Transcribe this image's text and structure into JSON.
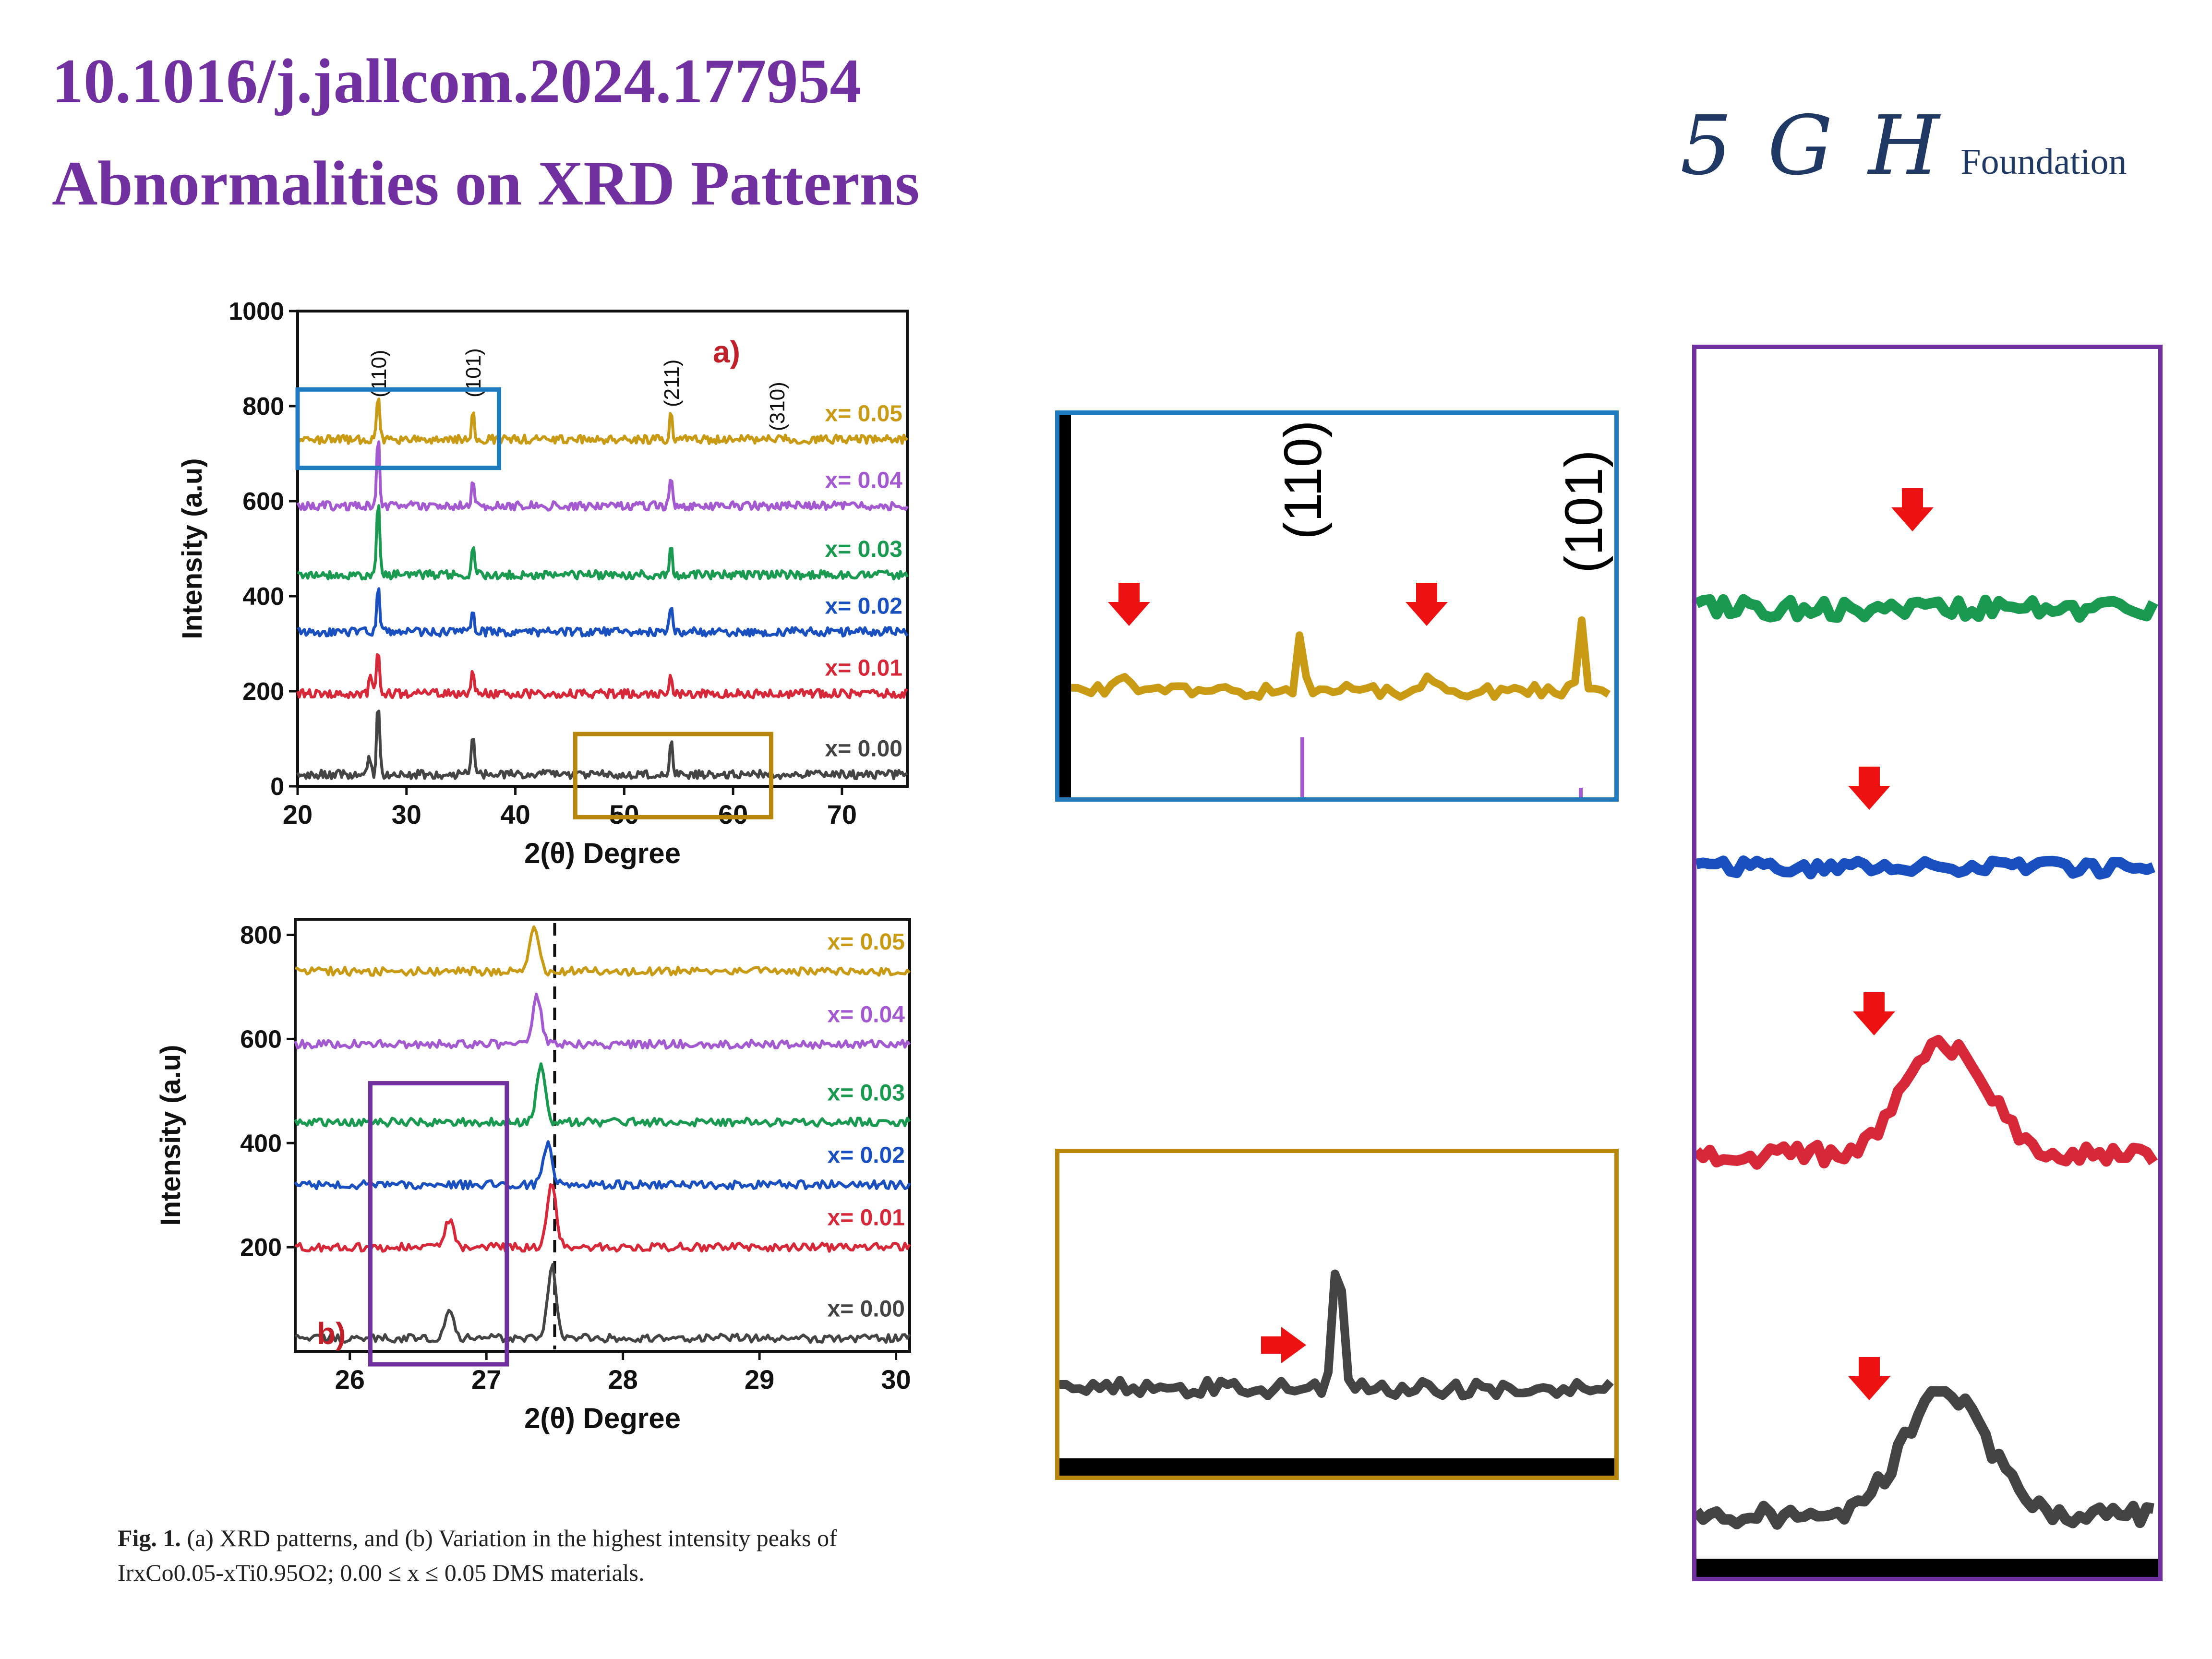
{
  "header": {
    "doi": "10.1016/j.jallcom.2024.177954",
    "subtitle": "Abnormalities on XRD Patterns"
  },
  "logo": {
    "mark": "5 G H",
    "word": "Foundation"
  },
  "caption": {
    "fig_label": "Fig. 1.",
    "line1": "(a) XRD patterns, and (b) Variation in the highest intensity peaks of",
    "line2": "IrxCo0.05-xTi0.95O2; 0.00 ≤ x ≤ 0.05 DMS materials."
  },
  "colors": {
    "x000": "#444444",
    "x001": "#d62839",
    "x002": "#1a4fbf",
    "x003": "#1a9a50",
    "x004": "#a35ad1",
    "x005": "#c99a14",
    "blue_box": "#1f7bbf",
    "gold_box": "#b8860b",
    "purple_box": "#7030a0",
    "arrow": "#ee1111",
    "title": "#7030a0"
  },
  "chart_data": [
    {
      "type": "line",
      "panel_label": "a)",
      "xlabel": "2(θ) Degree",
      "ylabel": "Intensity (a.u)",
      "xlim": [
        20,
        76
      ],
      "ylim": [
        0,
        1000
      ],
      "xticks": [
        20,
        30,
        40,
        50,
        60,
        70
      ],
      "yticks": [
        0,
        200,
        400,
        600,
        800,
        1000
      ],
      "peak_labels": [
        {
          "text": "(110)",
          "x": 27.4
        },
        {
          "text": "(101)",
          "x": 36.1
        },
        {
          "text": "(211)",
          "x": 54.3
        },
        {
          "text": "(310)",
          "x": 64.0
        }
      ],
      "series": [
        {
          "name": "x= 0.00",
          "color": "#444444",
          "baseline": 25,
          "peaks": [
            {
              "x": 26.6,
              "h": 40
            },
            {
              "x": 27.4,
              "h": 160
            },
            {
              "x": 36.1,
              "h": 95
            },
            {
              "x": 54.3,
              "h": 75
            }
          ]
        },
        {
          "name": "x= 0.01",
          "color": "#d62839",
          "baseline": 195,
          "peaks": [
            {
              "x": 26.7,
              "h": 45
            },
            {
              "x": 27.4,
              "h": 100
            },
            {
              "x": 36.1,
              "h": 50
            },
            {
              "x": 54.3,
              "h": 40
            }
          ]
        },
        {
          "name": "x= 0.02",
          "color": "#1a4fbf",
          "baseline": 325,
          "peaks": [
            {
              "x": 27.4,
              "h": 95
            },
            {
              "x": 36.1,
              "h": 50
            },
            {
              "x": 54.3,
              "h": 60
            }
          ]
        },
        {
          "name": "x= 0.03",
          "color": "#1a9a50",
          "baseline": 445,
          "peaks": [
            {
              "x": 27.4,
              "h": 160
            },
            {
              "x": 36.1,
              "h": 70
            },
            {
              "x": 54.3,
              "h": 60
            }
          ]
        },
        {
          "name": "x= 0.04",
          "color": "#a35ad1",
          "baseline": 590,
          "peaks": [
            {
              "x": 27.4,
              "h": 150
            },
            {
              "x": 36.1,
              "h": 55
            },
            {
              "x": 54.3,
              "h": 70
            }
          ]
        },
        {
          "name": "x= 0.05",
          "color": "#c99a14",
          "baseline": 730,
          "peaks": [
            {
              "x": 27.4,
              "h": 95
            },
            {
              "x": 36.1,
              "h": 65
            },
            {
              "x": 54.3,
              "h": 60
            }
          ]
        }
      ],
      "highlight_boxes": [
        {
          "color": "#1f7bbf",
          "x": [
            20,
            38.5
          ],
          "y": [
            670,
            835
          ]
        },
        {
          "color": "#b8860b",
          "x": [
            45.5,
            63.5
          ],
          "y": [
            -65,
            110
          ]
        }
      ]
    },
    {
      "type": "line",
      "panel_label": "b)",
      "xlabel": "2(θ) Degree",
      "ylabel": "Intensity (a.u)",
      "xlim": [
        25.6,
        30.1
      ],
      "ylim": [
        0,
        830
      ],
      "xticks": [
        26,
        27,
        28,
        29,
        30
      ],
      "yticks": [
        200,
        400,
        600,
        800
      ],
      "reference_line_x": 27.5,
      "series": [
        {
          "name": "x= 0.00",
          "color": "#444444",
          "baseline": 25,
          "peaks": [
            {
              "x": 26.73,
              "h": 60
            },
            {
              "x": 27.48,
              "h": 140
            }
          ]
        },
        {
          "name": "x= 0.01",
          "color": "#d62839",
          "baseline": 200,
          "peaks": [
            {
              "x": 26.73,
              "h": 55
            },
            {
              "x": 27.48,
              "h": 120
            }
          ]
        },
        {
          "name": "x= 0.02",
          "color": "#1a4fbf",
          "baseline": 320,
          "peaks": [
            {
              "x": 27.45,
              "h": 80
            }
          ]
        },
        {
          "name": "x= 0.03",
          "color": "#1a9a50",
          "baseline": 440,
          "peaks": [
            {
              "x": 27.4,
              "h": 110
            }
          ]
        },
        {
          "name": "x= 0.04",
          "color": "#a35ad1",
          "baseline": 590,
          "peaks": [
            {
              "x": 27.37,
              "h": 95
            }
          ]
        },
        {
          "name": "x= 0.05",
          "color": "#c99a14",
          "baseline": 730,
          "peaks": [
            {
              "x": 27.35,
              "h": 85
            }
          ]
        }
      ],
      "highlight_boxes": [
        {
          "color": "#7030a0",
          "x": [
            26.15,
            27.15
          ],
          "y": [
            -25,
            515
          ]
        }
      ]
    }
  ],
  "zooms": {
    "blue": {
      "labels": [
        "(110)",
        "(101)"
      ]
    }
  }
}
